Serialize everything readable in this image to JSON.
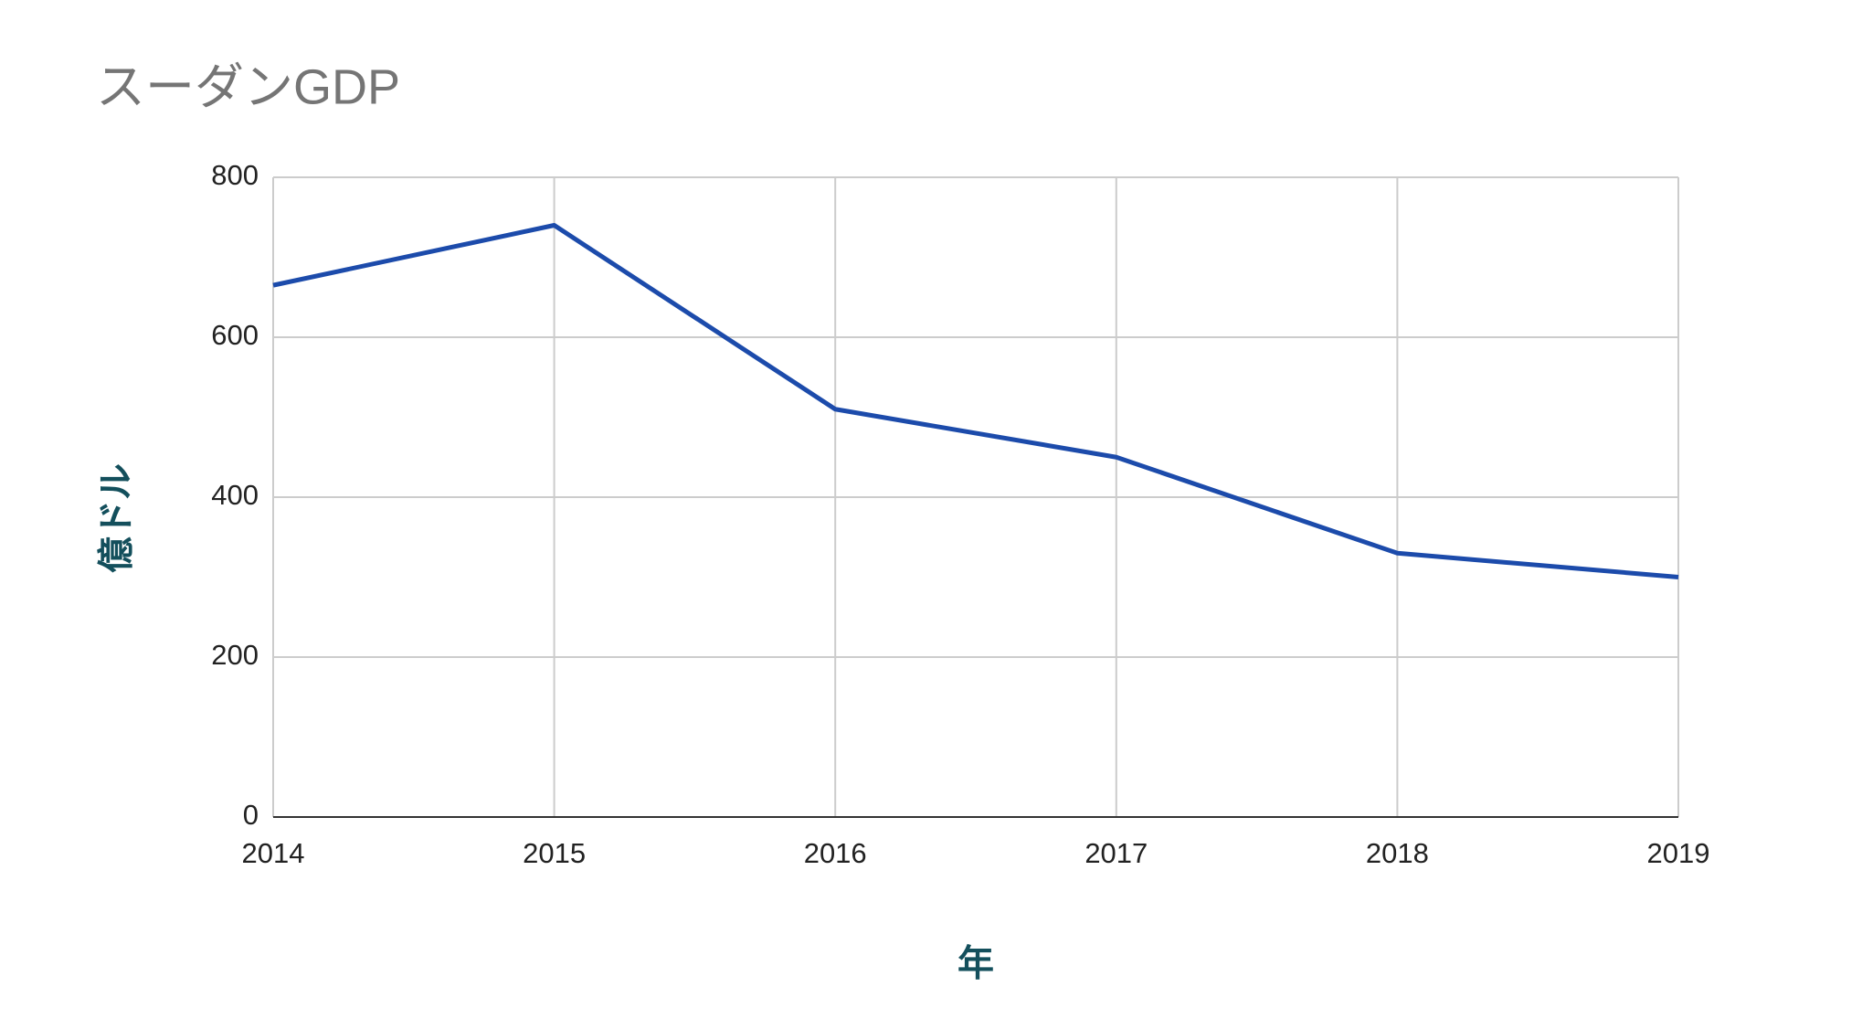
{
  "chart_data": {
    "type": "line",
    "title": "スーダンGDP",
    "x_label": "年",
    "y_label": "億ドル",
    "x": [
      2014,
      2015,
      2016,
      2017,
      2018,
      2019
    ],
    "values": [
      665,
      740,
      510,
      450,
      330,
      300
    ],
    "color": "#1c4bab",
    "xlim": [
      2014,
      2019
    ],
    "xticks": [
      2014,
      2015,
      2016,
      2017,
      2018,
      2019
    ],
    "ylim": [
      0,
      800
    ],
    "yticks": [
      0,
      200,
      400,
      600,
      800
    ],
    "grid": true
  }
}
